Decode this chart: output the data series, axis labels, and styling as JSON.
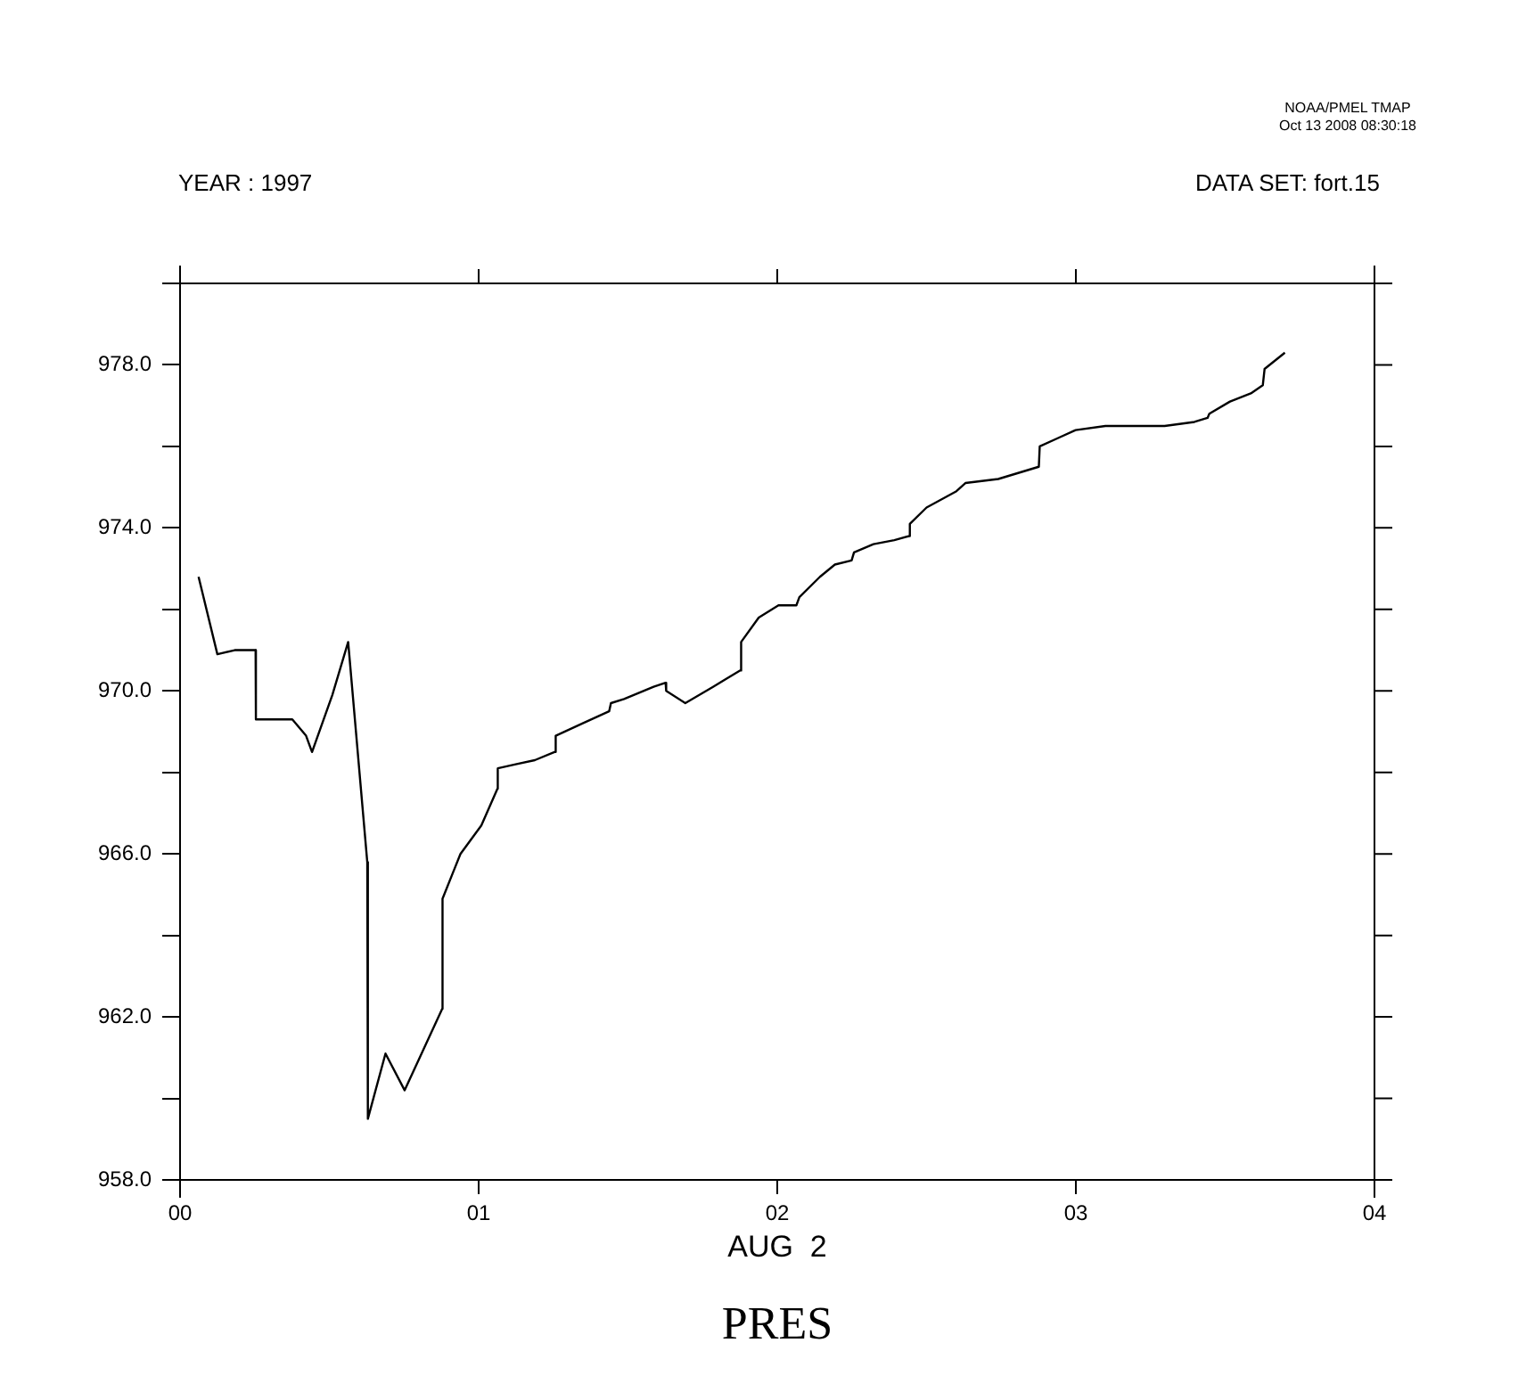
{
  "chart_data": {
    "type": "line",
    "title": "PRES",
    "xlabel": "AUG  2",
    "annotations": [
      "YEAR : 1997",
      "DATA SET: fort.15",
      "NOAA/PMEL TMAP",
      "Oct 13 2008 08:30:18"
    ],
    "x": [
      0.062,
      0.125,
      0.183,
      0.253,
      0.254,
      0.312,
      0.376,
      0.422,
      0.442,
      0.51,
      0.563,
      0.627,
      0.629,
      0.688,
      0.752,
      0.878,
      0.879,
      0.939,
      1.009,
      1.063,
      1.064,
      1.124,
      1.188,
      1.254,
      1.258,
      1.347,
      1.437,
      1.443,
      1.487,
      1.586,
      1.626,
      1.628,
      1.692,
      1.785,
      1.875,
      1.879,
      1.938,
      2.004,
      2.064,
      2.074,
      2.143,
      2.193,
      2.249,
      2.257,
      2.322,
      2.392,
      2.442,
      2.444,
      2.5,
      2.6,
      2.63,
      2.74,
      2.876,
      2.879,
      2.939,
      2.999,
      3.099,
      3.168,
      3.228,
      3.297,
      3.397,
      3.441,
      3.447,
      3.516,
      3.586,
      3.626,
      3.632,
      3.7
    ],
    "series": [
      {
        "color": "#000000",
        "values": [
          972.8,
          970.9,
          971.0,
          971.0,
          969.3,
          969.3,
          969.3,
          968.9,
          968.5,
          969.9,
          971.2,
          965.8,
          959.5,
          961.1,
          960.2,
          962.2,
          964.9,
          966.0,
          966.7,
          967.6,
          968.1,
          968.2,
          968.3,
          968.5,
          968.9,
          969.2,
          969.5,
          969.7,
          969.8,
          970.1,
          970.2,
          970.0,
          969.7,
          970.1,
          970.5,
          971.2,
          971.8,
          972.1,
          972.1,
          972.3,
          972.8,
          973.1,
          973.2,
          973.4,
          973.6,
          973.7,
          973.8,
          974.1,
          974.5,
          974.9,
          975.1,
          975.2,
          975.5,
          976.0,
          976.2,
          976.4,
          976.5,
          976.5,
          976.5,
          976.5,
          976.6,
          976.7,
          976.8,
          977.1,
          977.3,
          977.5,
          977.9,
          978.3
        ]
      }
    ],
    "xlim": [
      0,
      4
    ],
    "xticks": [
      {
        "value": 0,
        "label": "00"
      },
      {
        "value": 1,
        "label": "01"
      },
      {
        "value": 2,
        "label": "02"
      },
      {
        "value": 3,
        "label": "03"
      },
      {
        "value": 4,
        "label": "04"
      }
    ],
    "ylim": [
      958,
      980
    ],
    "yticks": [
      {
        "value": 958,
        "label": "958.0"
      },
      {
        "value": 960,
        "label": null
      },
      {
        "value": 962,
        "label": "962.0"
      },
      {
        "value": 964,
        "label": null
      },
      {
        "value": 966,
        "label": "966.0"
      },
      {
        "value": 968,
        "label": null
      },
      {
        "value": 970,
        "label": "970.0"
      },
      {
        "value": 972,
        "label": null
      },
      {
        "value": 974,
        "label": "974.0"
      },
      {
        "value": 976,
        "label": null
      },
      {
        "value": 978,
        "label": "978.0"
      },
      {
        "value": 980,
        "label": null
      }
    ],
    "marker": "none",
    "line_style": "solid",
    "legend": false
  }
}
